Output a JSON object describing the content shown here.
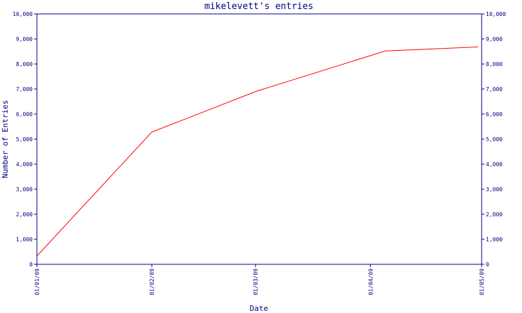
{
  "chart_data": {
    "type": "line",
    "title": "mikelevett's entries",
    "xlabel": "Date",
    "ylabel": "Number of Entries",
    "x_ticks": [
      "01/01/09",
      "01/02/09",
      "01/03/09",
      "01/04/09",
      "01/05/09"
    ],
    "x_range": [
      "01/01/09",
      "01/05/09"
    ],
    "y_ticks": [
      "0",
      "1,000",
      "2,000",
      "3,000",
      "4,000",
      "5,000",
      "6,000",
      "7,000",
      "8,000",
      "9,000",
      "10,000"
    ],
    "ylim": [
      0,
      10000
    ],
    "y_axis_sides": [
      "left",
      "right"
    ],
    "grid": false,
    "series": [
      {
        "color": "#ff0000",
        "points": [
          {
            "x": "2009-01-01",
            "y": 330
          },
          {
            "x": "2009-02-01",
            "y": 5280
          },
          {
            "x": "2009-03-01",
            "y": 6900
          },
          {
            "x": "2009-04-05",
            "y": 8520
          },
          {
            "x": "2009-04-30",
            "y": 8680
          }
        ]
      }
    ]
  }
}
